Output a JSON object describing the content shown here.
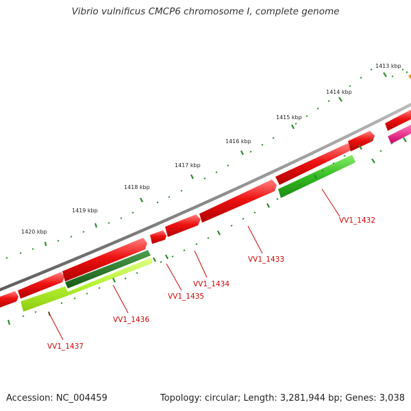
{
  "title": "Vibrio vulnificus CMCP6 chromosome I, complete genome",
  "footer": {
    "accession_text": "Accession: NC_004459",
    "stats_text": "Topology: circular; Length: 3,281,944 bp; Genes: 3,038"
  },
  "colors": {
    "backbone": "#8a8a8a",
    "forward_cds": "#ee1111",
    "green_feature": "#33bb22",
    "darkgreen_feature": "#1f7a1f",
    "lime_feature": "#b5f233",
    "pink_feature": "#ee1188",
    "tick": "#2a8a2a",
    "label": "#cc0000"
  },
  "ticks": {
    "labels": [
      "1413 kbp",
      "1414 kbp",
      "1415 kbp",
      "1416 kbp",
      "1417 kbp",
      "1418 kbp",
      "1419 kbp",
      "1420 kbp"
    ]
  },
  "genes": [
    {
      "label": "VV1_1432"
    },
    {
      "label": "VV1_1433"
    },
    {
      "label": "VV1_1434"
    },
    {
      "label": "VV1_1435"
    },
    {
      "label": "VV1_1436"
    },
    {
      "label": "VV1_1437"
    }
  ]
}
